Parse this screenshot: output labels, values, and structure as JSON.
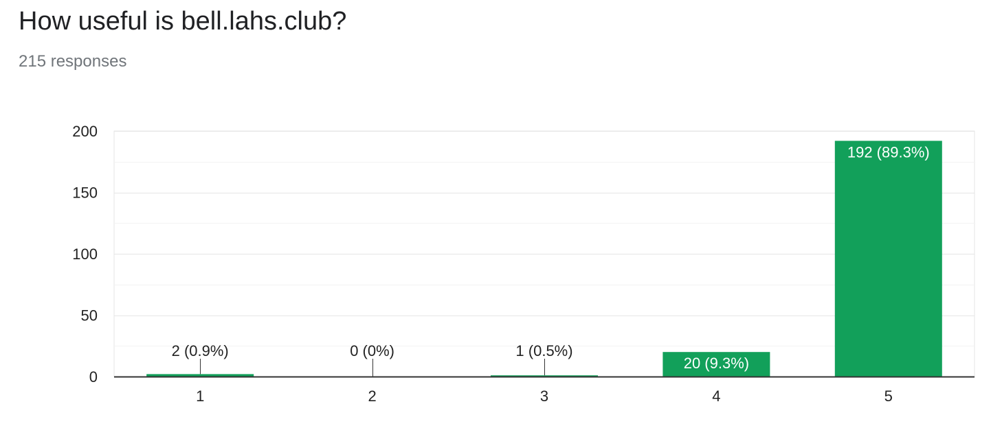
{
  "question": {
    "title": "How useful is bell.lahs.club?",
    "responses": "215 responses"
  },
  "colors": {
    "bar": "#12a05a",
    "axis": "#333333",
    "grid": "#e6e6e6",
    "minor_grid": "#f3f3f3",
    "text": "#222222",
    "inside_label": "#ffffff"
  },
  "chart_data": {
    "type": "bar",
    "title": "How useful is bell.lahs.club?",
    "xlabel": "",
    "ylabel": "",
    "categories": [
      "1",
      "2",
      "3",
      "4",
      "5"
    ],
    "values": [
      2,
      0,
      1,
      20,
      192
    ],
    "data_labels": [
      "2 (0.9%)",
      "0 (0%)",
      "1 (0.5%)",
      "20 (9.3%)",
      "192 (89.3%)"
    ],
    "ylim": [
      0,
      200
    ],
    "yticks": [
      0,
      50,
      100,
      150,
      200
    ],
    "grid": true,
    "legend": "none"
  }
}
